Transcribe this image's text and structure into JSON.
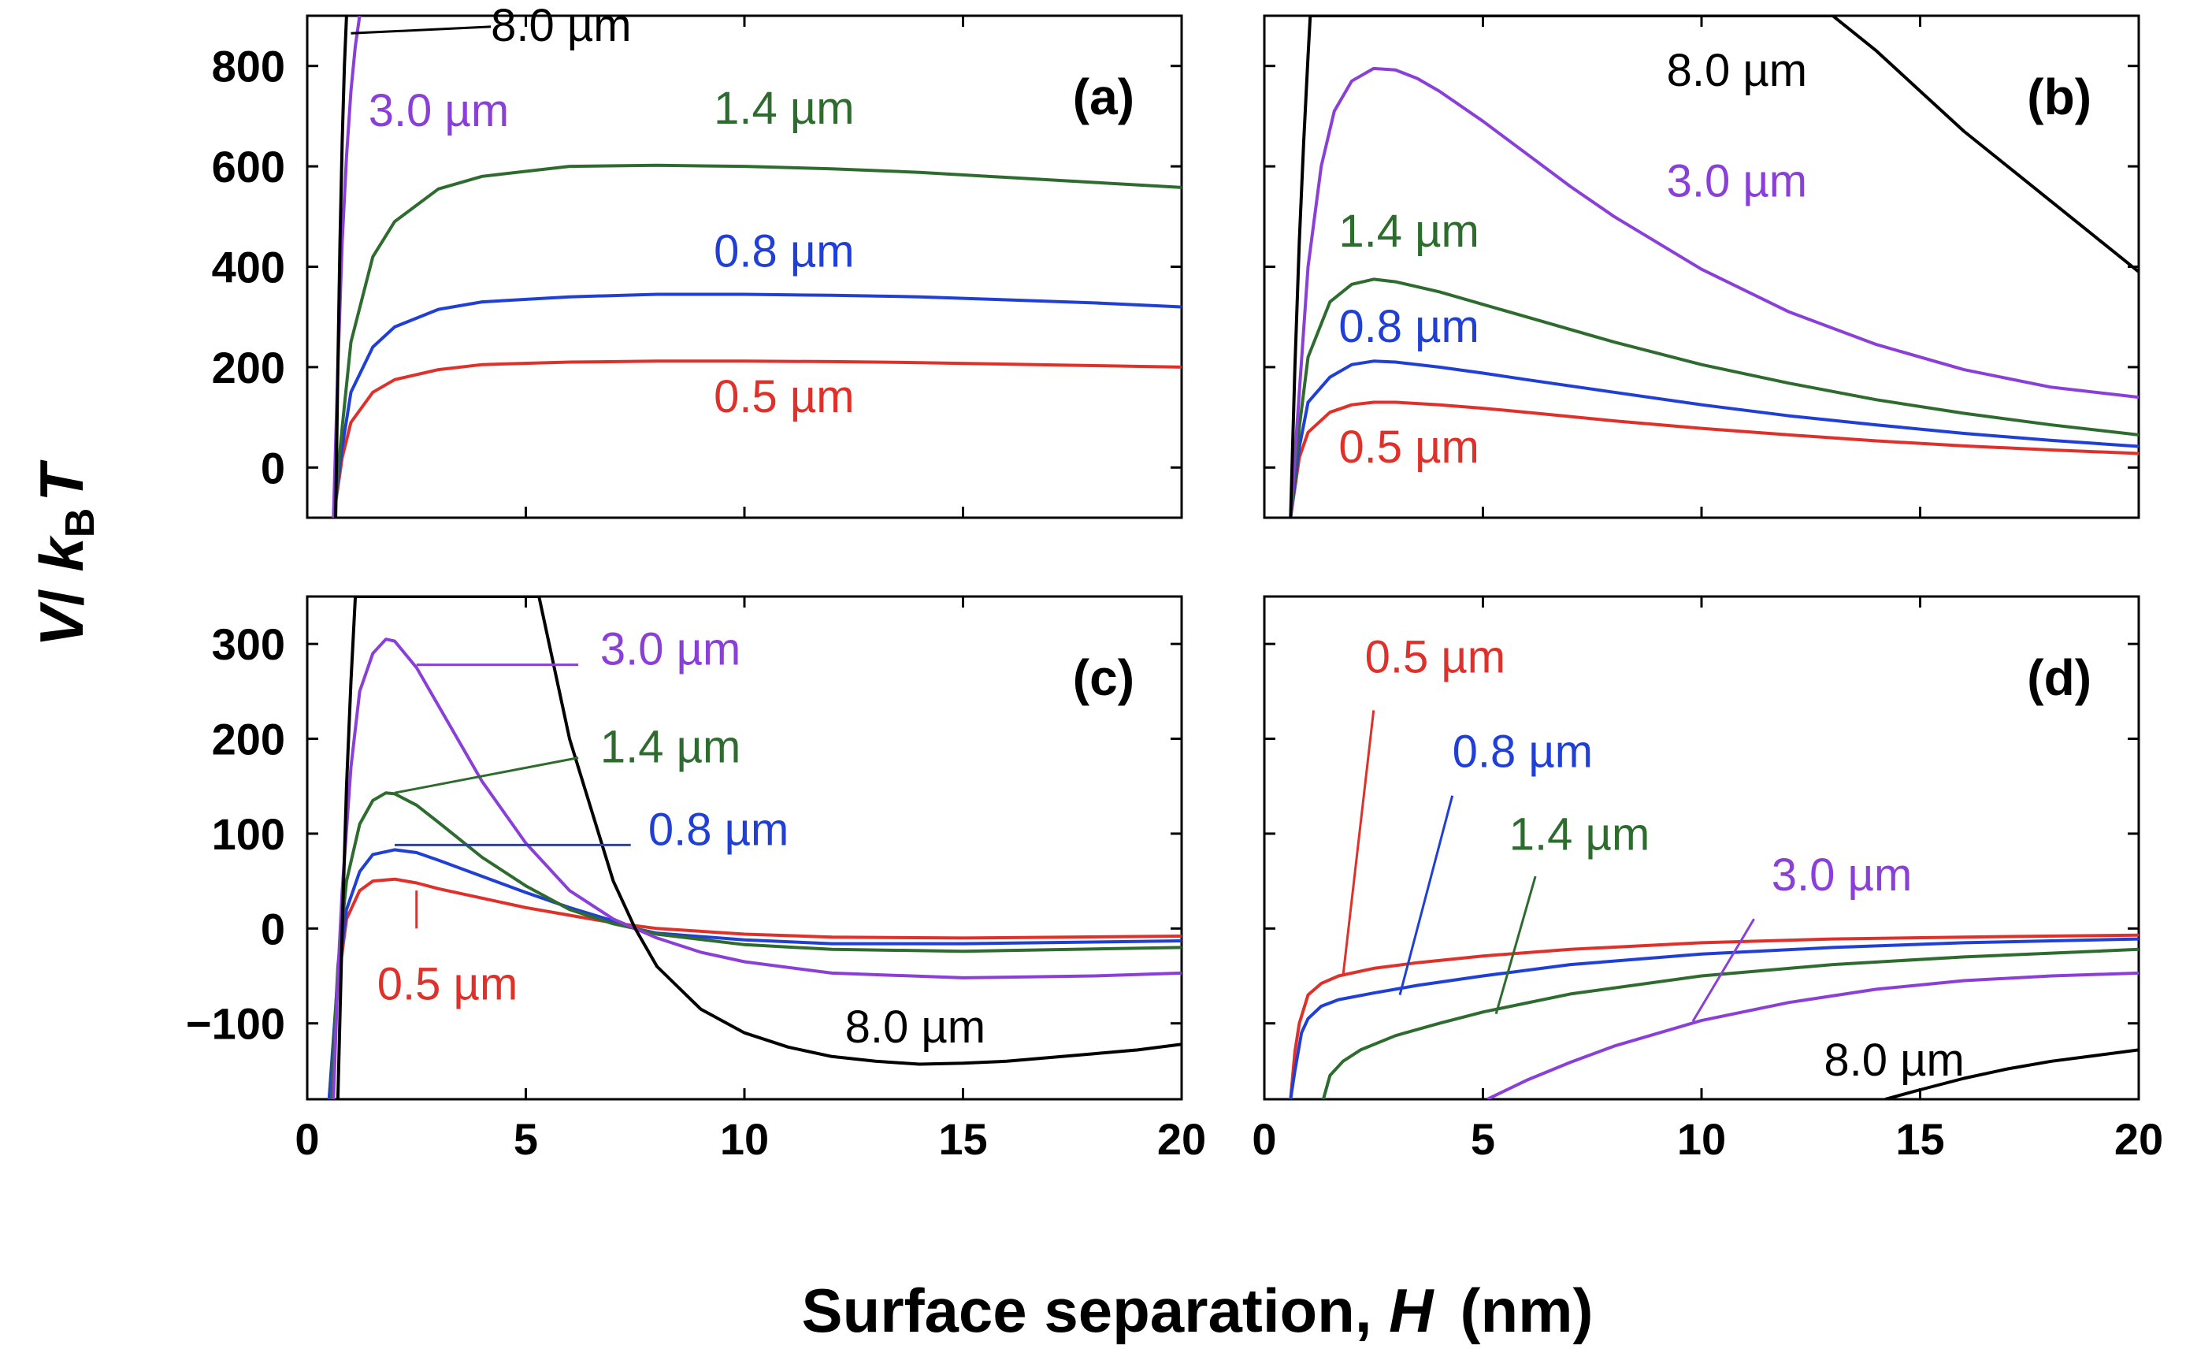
{
  "figure": {
    "x_title_text": "Surface separation, ",
    "x_title_var": "H",
    "x_title_unit": "(nm)",
    "y_title_v": "V",
    "y_title_slash": "/ ",
    "y_title_k": "k",
    "y_title_sub": "B",
    "y_title_t": "T"
  },
  "colors": {
    "0.5 µm": "#e0302a",
    "0.8 µm": "#1f3fd6",
    "1.4 µm": "#2e6b2e",
    "3.0 µm": "#8a3fd8",
    "8.0 µm": "#000000"
  },
  "chart_data": [
    {
      "type": "line",
      "panel_label": "(a)",
      "xlim": [
        0,
        20
      ],
      "ylim": [
        -100,
        900
      ],
      "x_ticks": [
        0,
        5,
        10,
        15,
        20
      ],
      "y_ticks": [
        0,
        200,
        400,
        600,
        800
      ],
      "x_tick_labels": [],
      "y_tick_labels": [
        "0",
        "200",
        "400",
        "600",
        "800"
      ],
      "series": [
        {
          "name": "0.5 µm",
          "x": [
            0.6,
            0.8,
            1.0,
            1.5,
            2,
            3,
            4,
            6,
            8,
            10,
            12,
            14,
            16,
            18,
            20
          ],
          "y": [
            -100,
            20,
            90,
            150,
            175,
            195,
            205,
            210,
            212,
            212,
            211,
            209,
            206,
            203,
            200
          ]
        },
        {
          "name": "0.8 µm",
          "x": [
            0.6,
            0.8,
            1.0,
            1.5,
            2,
            3,
            4,
            6,
            8,
            10,
            12,
            14,
            16,
            18,
            20
          ],
          "y": [
            -100,
            40,
            150,
            240,
            280,
            315,
            330,
            340,
            345,
            345,
            343,
            340,
            334,
            328,
            320
          ]
        },
        {
          "name": "1.4 µm",
          "x": [
            0.6,
            0.8,
            1.0,
            1.5,
            2,
            3,
            4,
            6,
            8,
            10,
            12,
            14,
            16,
            18,
            20
          ],
          "y": [
            -100,
            80,
            250,
            420,
            490,
            555,
            580,
            600,
            602,
            600,
            595,
            588,
            578,
            568,
            558
          ]
        },
        {
          "name": "3.0 µm",
          "x": [
            0.6,
            0.7,
            0.8,
            0.9,
            1.0,
            1.1,
            1.2
          ],
          "y": [
            -100,
            200,
            450,
            620,
            750,
            840,
            900
          ]
        },
        {
          "name": "8.0 µm",
          "x": [
            0.65,
            0.7,
            0.75,
            0.8,
            0.85,
            0.9
          ],
          "y": [
            -100,
            200,
            450,
            650,
            800,
            900
          ]
        }
      ],
      "labels": [
        {
          "text": "8.0 µm",
          "series": "8.0 µm",
          "x": 4.2,
          "y": 850,
          "pointer": [
            1.0,
            865
          ]
        },
        {
          "text": "3.0 µm",
          "series": "3.0 µm",
          "x": 1.4,
          "y": 680
        },
        {
          "text": "1.4 µm",
          "series": "1.4 µm",
          "x": 9.3,
          "y": 685
        },
        {
          "text": "0.8 µm",
          "series": "0.8 µm",
          "x": 9.3,
          "y": 400
        },
        {
          "text": "0.5 µm",
          "series": "0.5 µm",
          "x": 9.3,
          "y": 110
        }
      ]
    },
    {
      "type": "line",
      "panel_label": "(b)",
      "xlim": [
        0,
        20
      ],
      "ylim": [
        -100,
        900
      ],
      "x_ticks": [
        0,
        5,
        10,
        15,
        20
      ],
      "y_ticks": [
        0,
        200,
        400,
        600,
        800
      ],
      "x_tick_labels": [],
      "y_tick_labels": [],
      "series": [
        {
          "name": "0.5 µm",
          "x": [
            0.6,
            0.8,
            1.0,
            1.5,
            2,
            2.5,
            3,
            4,
            5,
            6,
            8,
            10,
            12,
            14,
            16,
            18,
            20
          ],
          "y": [
            -100,
            20,
            70,
            110,
            125,
            130,
            130,
            125,
            118,
            110,
            93,
            78,
            65,
            53,
            43,
            35,
            28
          ]
        },
        {
          "name": "0.8 µm",
          "x": [
            0.6,
            0.8,
            1.0,
            1.5,
            2,
            2.5,
            3,
            4,
            5,
            6,
            8,
            10,
            12,
            14,
            16,
            18,
            20
          ],
          "y": [
            -100,
            40,
            130,
            180,
            205,
            212,
            210,
            200,
            188,
            175,
            150,
            125,
            103,
            85,
            68,
            54,
            42
          ]
        },
        {
          "name": "1.4 µm",
          "x": [
            0.6,
            0.8,
            1.0,
            1.5,
            2,
            2.5,
            3,
            4,
            5,
            6,
            8,
            10,
            12,
            14,
            16,
            18,
            20
          ],
          "y": [
            -100,
            80,
            220,
            330,
            365,
            375,
            370,
            350,
            325,
            300,
            250,
            205,
            168,
            135,
            108,
            85,
            65
          ]
        },
        {
          "name": "3.0 µm",
          "x": [
            0.6,
            0.8,
            1.0,
            1.3,
            1.6,
            2.0,
            2.5,
            3.0,
            3.5,
            4,
            5,
            6,
            7,
            8,
            10,
            12,
            14,
            16,
            18,
            20
          ],
          "y": [
            -100,
            150,
            400,
            600,
            710,
            770,
            795,
            792,
            775,
            750,
            690,
            625,
            560,
            500,
            395,
            310,
            245,
            195,
            160,
            140
          ]
        },
        {
          "name": "8.0 µm",
          "x": [
            0.6,
            0.7,
            0.8,
            0.9,
            1.0,
            1.05,
            13.0,
            14,
            15,
            16,
            17,
            18,
            19,
            20
          ],
          "y": [
            -100,
            200,
            450,
            650,
            820,
            900,
            900,
            830,
            750,
            670,
            600,
            530,
            460,
            390
          ]
        }
      ],
      "labels": [
        {
          "text": "8.0 µm",
          "series": "8.0 µm",
          "x": 9.2,
          "y": 760
        },
        {
          "text": "3.0 µm",
          "series": "3.0 µm",
          "x": 9.2,
          "y": 540
        },
        {
          "text": "1.4 µm",
          "series": "1.4 µm",
          "x": 1.7,
          "y": 440
        },
        {
          "text": "0.8 µm",
          "series": "0.8 µm",
          "x": 1.7,
          "y": 250
        },
        {
          "text": "0.5 µm",
          "series": "0.5 µm",
          "x": 1.7,
          "y": 10
        }
      ]
    },
    {
      "type": "line",
      "panel_label": "(c)",
      "xlim": [
        0,
        20
      ],
      "ylim": [
        -180,
        350
      ],
      "x_ticks": [
        0,
        5,
        10,
        15,
        20
      ],
      "y_ticks": [
        -100,
        0,
        100,
        200,
        300
      ],
      "x_tick_labels": [
        "0",
        "5",
        "10",
        "15",
        "20"
      ],
      "y_tick_labels": [
        "−100",
        "0",
        "100",
        "200",
        "300"
      ],
      "series": [
        {
          "name": "0.5 µm",
          "x": [
            0.5,
            0.7,
            0.9,
            1.2,
            1.5,
            2.0,
            2.5,
            3,
            4,
            5,
            6,
            7,
            8,
            10,
            12,
            15,
            20
          ],
          "y": [
            -180,
            -60,
            10,
            40,
            50,
            52,
            48,
            42,
            32,
            22,
            14,
            6,
            0,
            -6,
            -9,
            -10,
            -8
          ]
        },
        {
          "name": "0.8 µm",
          "x": [
            0.5,
            0.7,
            0.9,
            1.2,
            1.5,
            2.0,
            2.5,
            3,
            4,
            5,
            6,
            7,
            7.5,
            8,
            10,
            12,
            15,
            20
          ],
          "y": [
            -180,
            -50,
            20,
            60,
            78,
            83,
            80,
            72,
            55,
            38,
            22,
            8,
            0,
            -5,
            -12,
            -16,
            -16,
            -13
          ]
        },
        {
          "name": "1.4 µm",
          "x": [
            0.55,
            0.7,
            0.9,
            1.2,
            1.5,
            1.8,
            2.0,
            2.5,
            3,
            4,
            5,
            6,
            7,
            7.5,
            8,
            10,
            12,
            15,
            20
          ],
          "y": [
            -180,
            -40,
            50,
            110,
            135,
            143,
            142,
            130,
            112,
            75,
            45,
            20,
            5,
            0,
            -6,
            -17,
            -22,
            -24,
            -20
          ]
        },
        {
          "name": "3.0 µm",
          "x": [
            0.6,
            0.7,
            0.8,
            1.0,
            1.2,
            1.5,
            1.8,
            2.0,
            2.5,
            3,
            4,
            5,
            6,
            7,
            7.5,
            8,
            9,
            10,
            12,
            15,
            18,
            20
          ],
          "y": [
            -180,
            -50,
            40,
            170,
            250,
            290,
            305,
            303,
            275,
            235,
            155,
            90,
            40,
            10,
            0,
            -10,
            -25,
            -35,
            -47,
            -52,
            -50,
            -47
          ]
        },
        {
          "name": "8.0 µm",
          "x": [
            0.7,
            0.8,
            0.9,
            1.0,
            1.1,
            5.3,
            6,
            7,
            7.5,
            8,
            9,
            10,
            11,
            12,
            13,
            14,
            15,
            16,
            17,
            18,
            19,
            20
          ],
          "y": [
            -180,
            0,
            150,
            260,
            350,
            350,
            200,
            50,
            0,
            -40,
            -85,
            -110,
            -125,
            -135,
            -140,
            -143,
            -142,
            -140,
            -136,
            -132,
            -128,
            -122
          ]
        }
      ],
      "labels": [
        {
          "text": "3.0 µm",
          "series": "3.0 µm",
          "x": 6.7,
          "y": 278,
          "pointer": [
            2.5,
            278,
            6.2,
            278
          ]
        },
        {
          "text": "1.4 µm",
          "series": "1.4 µm",
          "x": 6.7,
          "y": 175,
          "pointer": [
            2.0,
            143,
            6.2,
            180
          ]
        },
        {
          "text": "0.8 µm",
          "series": "0.8 µm",
          "x": 7.8,
          "y": 88,
          "pointer": [
            2.0,
            88,
            7.4,
            88
          ]
        },
        {
          "text": "0.5 µm",
          "series": "0.5 µm",
          "x": 1.6,
          "y": -75,
          "pointer": [
            2.5,
            40,
            2.5,
            0
          ]
        },
        {
          "text": "8.0 µm",
          "series": "8.0 µm",
          "x": 12.3,
          "y": -120
        }
      ]
    },
    {
      "type": "line",
      "panel_label": "(d)",
      "xlim": [
        0,
        20
      ],
      "ylim": [
        -180,
        350
      ],
      "x_ticks": [
        0,
        5,
        10,
        15,
        20
      ],
      "y_ticks": [
        -100,
        0,
        100,
        200,
        300
      ],
      "x_tick_labels": [
        "0",
        "5",
        "10",
        "15",
        "20"
      ],
      "y_tick_labels": [],
      "series": [
        {
          "name": "0.5 µm",
          "x": [
            0.6,
            0.7,
            0.8,
            1.0,
            1.3,
            1.7,
            2.5,
            3.5,
            5,
            7,
            10,
            13,
            16,
            20
          ],
          "y": [
            -180,
            -130,
            -100,
            -70,
            -58,
            -50,
            -42,
            -36,
            -29,
            -22,
            -15,
            -11,
            -9,
            -7
          ]
        },
        {
          "name": "0.8 µm",
          "x": [
            0.6,
            0.7,
            0.85,
            1.0,
            1.3,
            1.7,
            2.5,
            3.5,
            5,
            7,
            10,
            13,
            16,
            20
          ],
          "y": [
            -180,
            -150,
            -110,
            -95,
            -82,
            -75,
            -68,
            -60,
            -50,
            -38,
            -27,
            -20,
            -15,
            -11
          ]
        },
        {
          "name": "1.4 µm",
          "x": [
            1.35,
            1.5,
            1.8,
            2.2,
            3,
            4,
            5,
            7,
            10,
            13,
            16,
            20
          ],
          "y": [
            -180,
            -155,
            -140,
            -128,
            -113,
            -100,
            -88,
            -69,
            -50,
            -38,
            -30,
            -22
          ]
        },
        {
          "name": "3.0 µm",
          "x": [
            5.1,
            6,
            7,
            8,
            10,
            12,
            14,
            16,
            18,
            20
          ],
          "y": [
            -180,
            -160,
            -141,
            -124,
            -97,
            -78,
            -64,
            -55,
            -50,
            -47
          ]
        },
        {
          "name": "8.0 µm",
          "x": [
            14.2,
            15,
            16,
            17,
            18,
            19,
            20
          ],
          "y": [
            -180,
            -170,
            -158,
            -148,
            -140,
            -134,
            -128
          ]
        }
      ],
      "labels": [
        {
          "text": "0.5 µm",
          "series": "0.5 µm",
          "x": 2.3,
          "y": 270,
          "pointer": [
            1.8,
            -50,
            2.5,
            230
          ]
        },
        {
          "text": "0.8 µm",
          "series": "0.8 µm",
          "x": 4.3,
          "y": 170,
          "pointer": [
            3.1,
            -70,
            4.3,
            140
          ]
        },
        {
          "text": "1.4 µm",
          "series": "1.4 µm",
          "x": 5.6,
          "y": 83,
          "pointer": [
            5.3,
            -90,
            6.2,
            55
          ]
        },
        {
          "text": "3.0 µm",
          "series": "3.0 µm",
          "x": 11.6,
          "y": 40,
          "pointer": [
            9.8,
            -98,
            11.2,
            10
          ]
        },
        {
          "text": "8.0 µm",
          "series": "8.0 µm",
          "x": 12.8,
          "y": -155
        }
      ]
    }
  ]
}
